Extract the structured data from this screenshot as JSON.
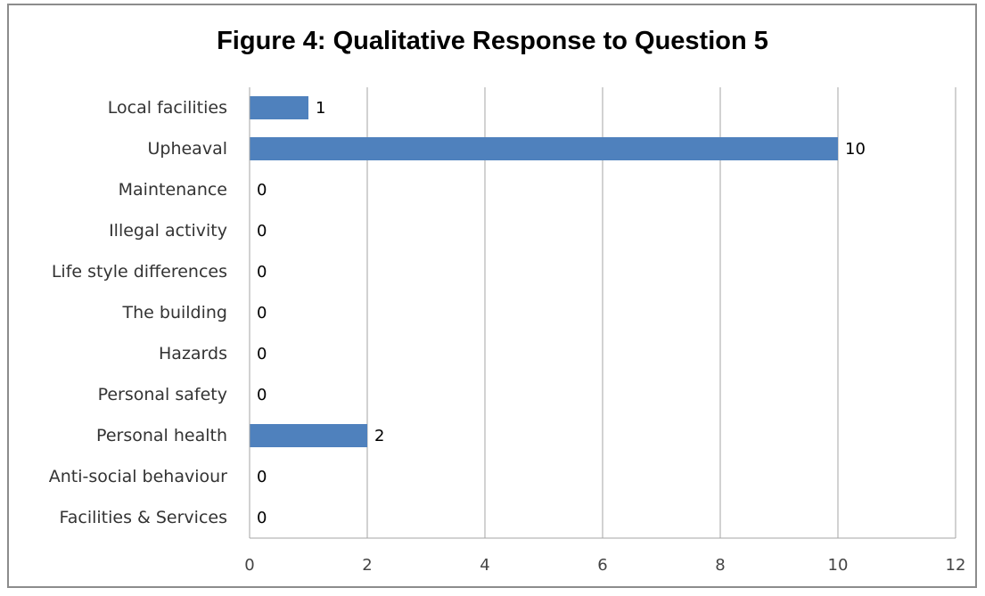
{
  "chart_data": {
    "type": "bar",
    "orientation": "horizontal",
    "title": "Figure 4: Qualitative Response to Question 5",
    "categories": [
      "Local facilities",
      "Upheaval",
      "Maintenance",
      "Illegal activity",
      "Life style differences",
      "The building",
      "Hazards",
      "Personal safety",
      "Personal health",
      "Anti-social behaviour",
      "Facilities & Services"
    ],
    "values": [
      1,
      10,
      0,
      0,
      0,
      0,
      0,
      0,
      2,
      0,
      0
    ],
    "xlim": [
      0,
      12
    ],
    "xticks": [
      0,
      2,
      4,
      6,
      8,
      10,
      12
    ],
    "xlabel": "",
    "ylabel": "",
    "grid": "vertical",
    "legend": "none",
    "bar_color": "#4f81bd",
    "grid_color": "#a6a6a6"
  }
}
